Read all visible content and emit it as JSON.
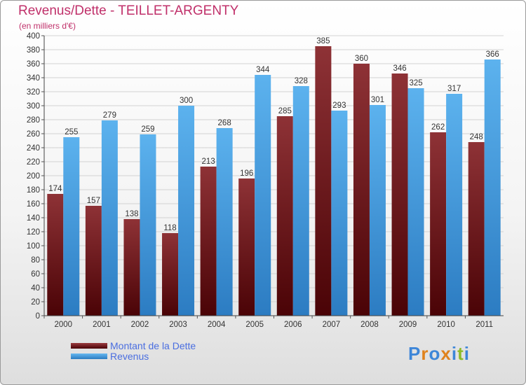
{
  "header": {
    "title": "Revenus/Dette - TEILLET-ARGENTY",
    "subtitle": "(en milliers d'€)"
  },
  "legend": {
    "items": [
      {
        "label": "Montant de la Dette",
        "color": "#7a1418"
      },
      {
        "label": "Revenus",
        "color": "#3f9be0"
      }
    ]
  },
  "logo": {
    "text": "Proxiti",
    "letters": [
      "P",
      "r",
      "o",
      "x",
      "i",
      "t",
      "i"
    ],
    "colors": [
      "#3d86d8",
      "#e0821c",
      "#3d86d8",
      "#e0821c",
      "#3d86d8",
      "#8cbb2a",
      "#3d86d8"
    ]
  },
  "chart_data": {
    "type": "bar",
    "title": "Revenus/Dette - TEILLET-ARGENTY",
    "subtitle": "(en milliers d'€)",
    "xlabel": "",
    "ylabel": "",
    "ylim": [
      0,
      400
    ],
    "ytick_step": 20,
    "grid": true,
    "legend_position": "bottom-left",
    "categories": [
      "2000",
      "2001",
      "2002",
      "2003",
      "2004",
      "2005",
      "2006",
      "2007",
      "2008",
      "2009",
      "2010",
      "2011"
    ],
    "series": [
      {
        "name": "Montant de la Dette",
        "color": "#7a1418",
        "values": [
          174,
          157,
          138,
          118,
          213,
          196,
          285,
          385,
          360,
          346,
          262,
          248
        ]
      },
      {
        "name": "Revenus",
        "color": "#3f9be0",
        "values": [
          255,
          279,
          259,
          300,
          268,
          344,
          328,
          293,
          301,
          325,
          317,
          366
        ]
      }
    ]
  }
}
